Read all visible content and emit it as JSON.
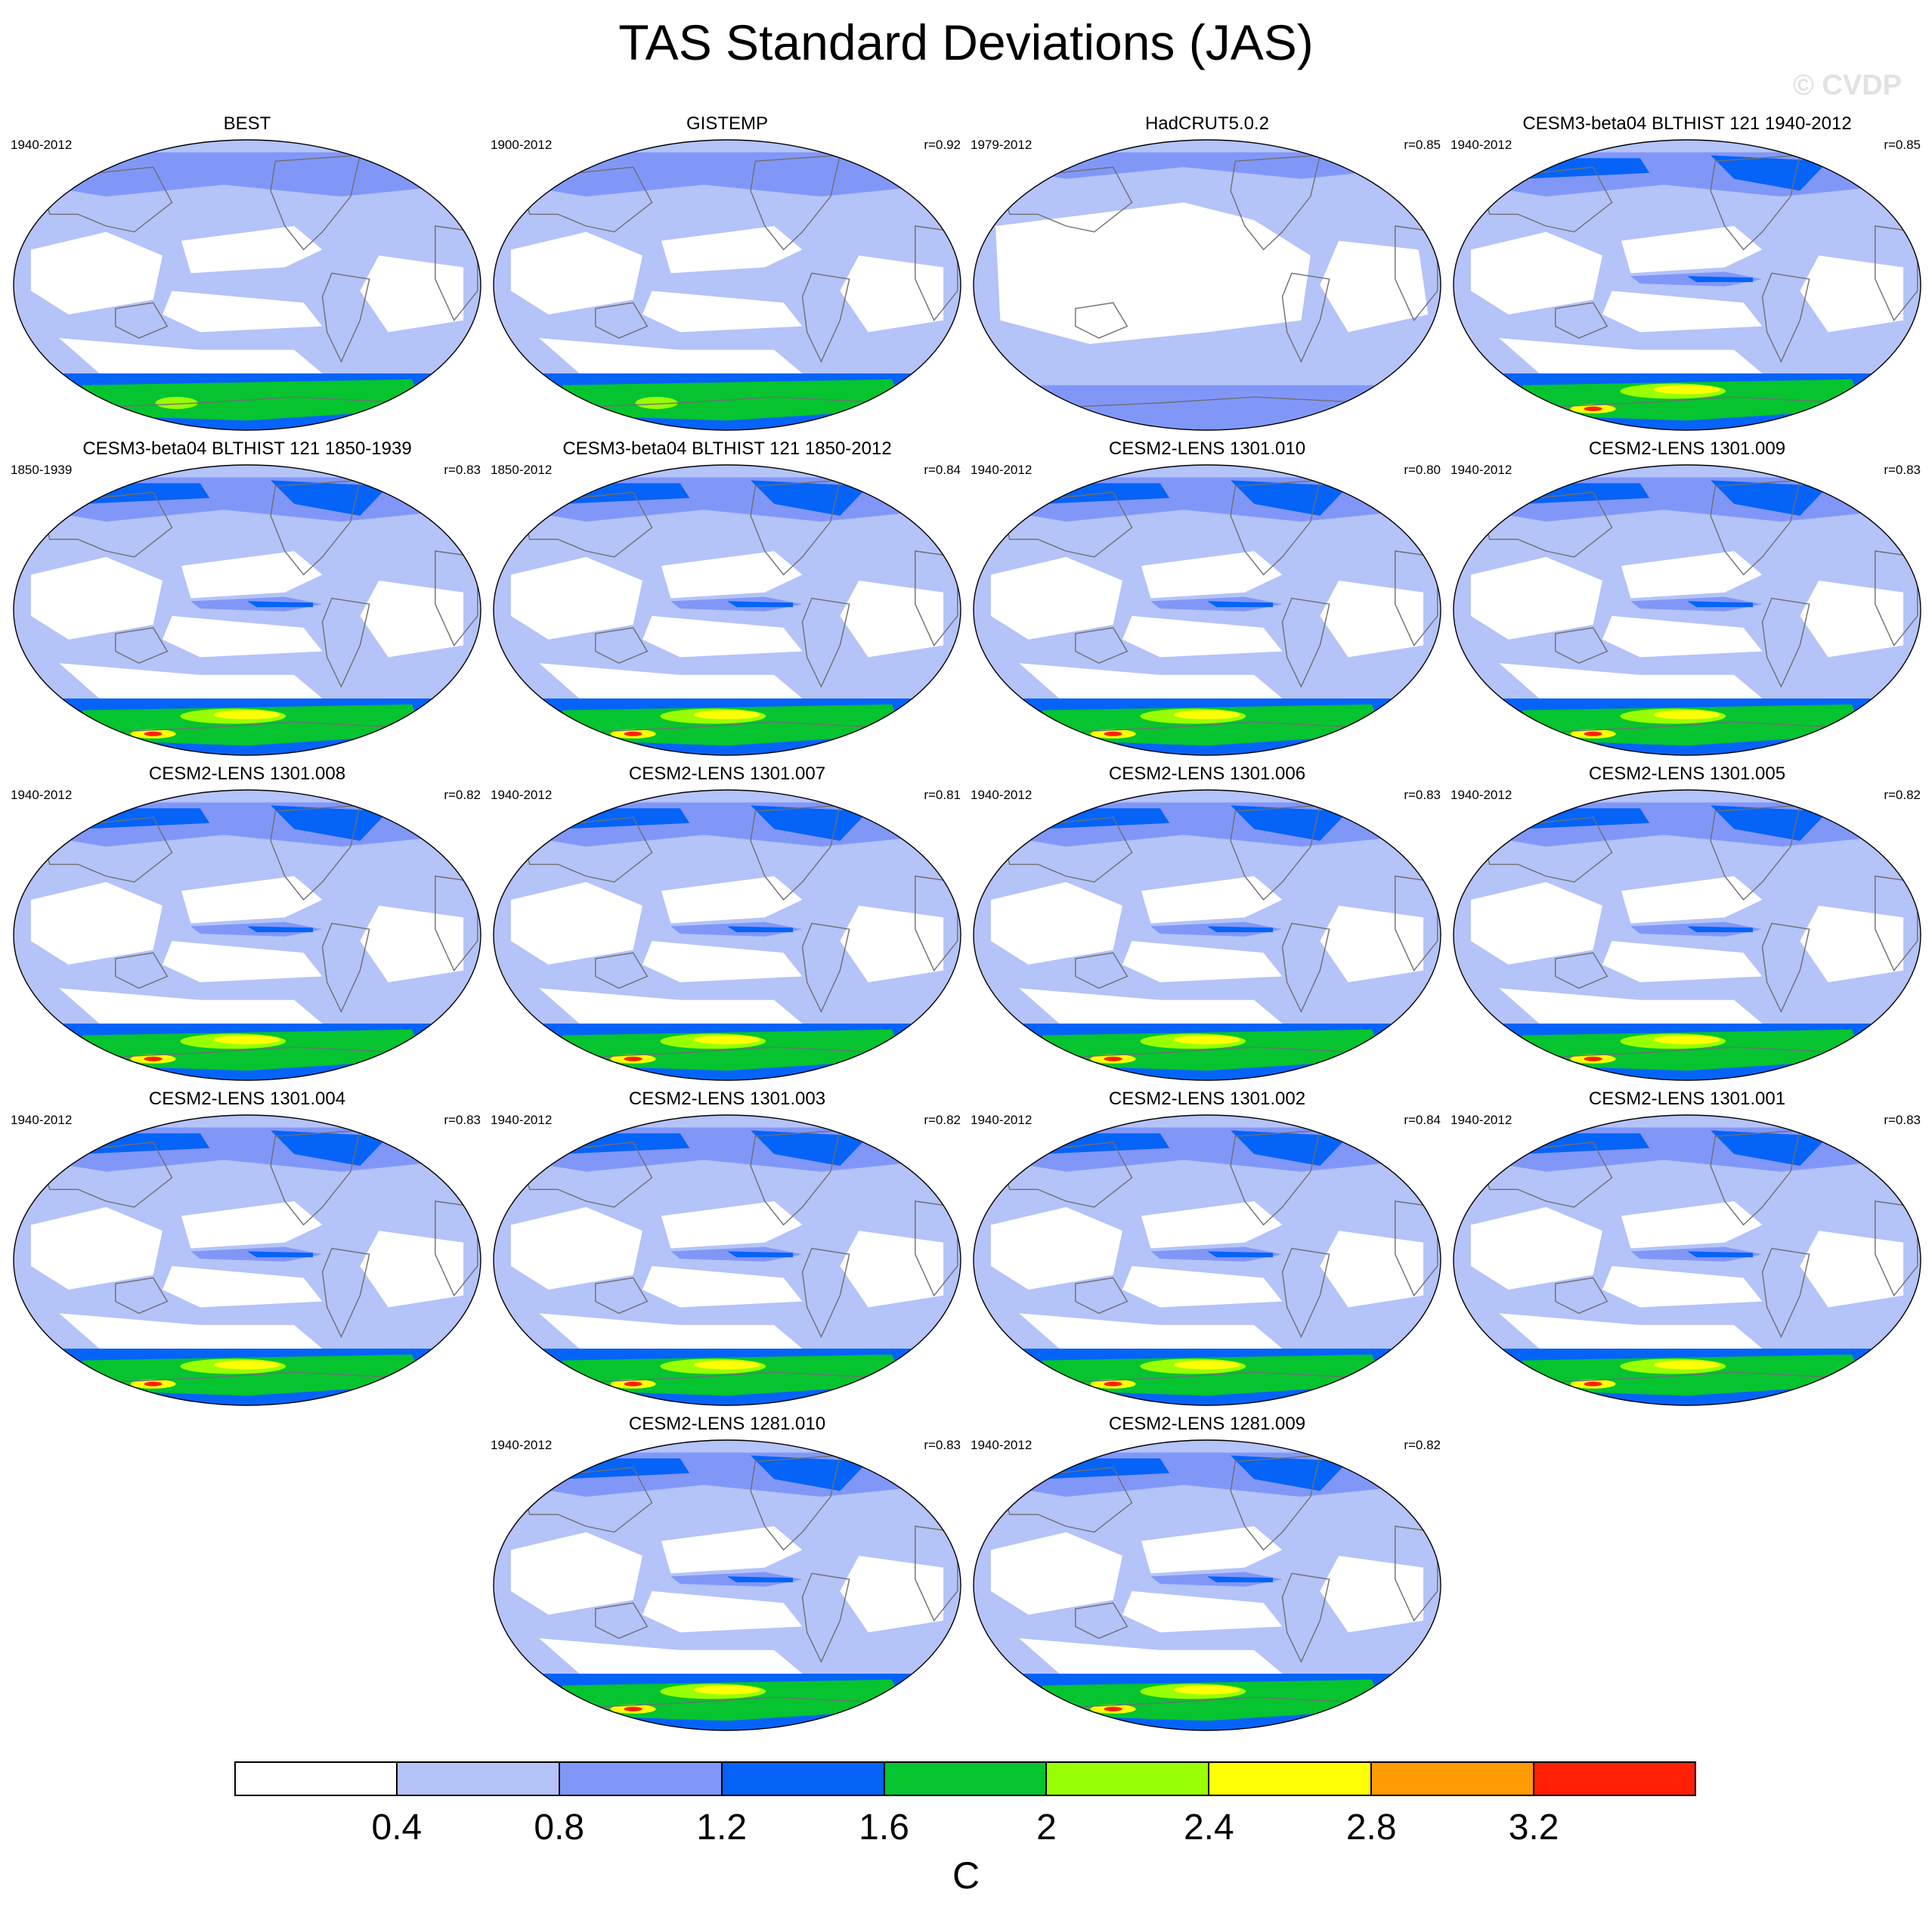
{
  "figure": {
    "title": "TAS Standard Deviations (JAS)",
    "watermark": "© CVDP"
  },
  "palette": [
    "#ffffff",
    "#b4c3f8",
    "#8197f8",
    "#0563f8",
    "#05c42f",
    "#99ff05",
    "#ffff05",
    "#ff9b05",
    "#ff2005"
  ],
  "colorbar": {
    "ticks": [
      "0.4",
      "0.8",
      "1.2",
      "1.6",
      "2",
      "2.4",
      "2.8",
      "3.2"
    ],
    "unit": "C"
  },
  "panels": [
    {
      "title": "BEST",
      "period": "1940-2012",
      "corr": "",
      "style": "obs"
    },
    {
      "title": "GISTEMP",
      "period": "1900-2012",
      "corr": "r=0.92",
      "style": "obs"
    },
    {
      "title": "HadCRUT5.0.2",
      "period": "1979-2012",
      "corr": "r=0.85",
      "style": "obs_light"
    },
    {
      "title": "CESM3-beta04 BLTHIST 121 1940-2012",
      "period": "1940-2012",
      "corr": "r=0.85",
      "style": "model"
    },
    {
      "title": "CESM3-beta04 BLTHIST 121 1850-1939",
      "period": "1850-1939",
      "corr": "r=0.83",
      "style": "model"
    },
    {
      "title": "CESM3-beta04 BLTHIST 121 1850-2012",
      "period": "1850-2012",
      "corr": "r=0.84",
      "style": "model"
    },
    {
      "title": "CESM2-LENS 1301.010",
      "period": "1940-2012",
      "corr": "r=0.80",
      "style": "model"
    },
    {
      "title": "CESM2-LENS 1301.009",
      "period": "1940-2012",
      "corr": "r=0.83",
      "style": "model"
    },
    {
      "title": "CESM2-LENS 1301.008",
      "period": "1940-2012",
      "corr": "r=0.82",
      "style": "model"
    },
    {
      "title": "CESM2-LENS 1301.007",
      "period": "1940-2012",
      "corr": "r=0.81",
      "style": "model"
    },
    {
      "title": "CESM2-LENS 1301.006",
      "period": "1940-2012",
      "corr": "r=0.83",
      "style": "model"
    },
    {
      "title": "CESM2-LENS 1301.005",
      "period": "1940-2012",
      "corr": "r=0.82",
      "style": "model"
    },
    {
      "title": "CESM2-LENS 1301.004",
      "period": "1940-2012",
      "corr": "r=0.83",
      "style": "model"
    },
    {
      "title": "CESM2-LENS 1301.003",
      "period": "1940-2012",
      "corr": "r=0.82",
      "style": "model"
    },
    {
      "title": "CESM2-LENS 1301.002",
      "period": "1940-2012",
      "corr": "r=0.84",
      "style": "model"
    },
    {
      "title": "CESM2-LENS 1301.001",
      "period": "1940-2012",
      "corr": "r=0.83",
      "style": "model"
    },
    {
      "title": "CESM2-LENS 1281.010",
      "period": "1940-2012",
      "corr": "r=0.83",
      "style": "model"
    },
    {
      "title": "CESM2-LENS 1281.009",
      "period": "1940-2012",
      "corr": "r=0.82",
      "style": "model"
    }
  ]
}
